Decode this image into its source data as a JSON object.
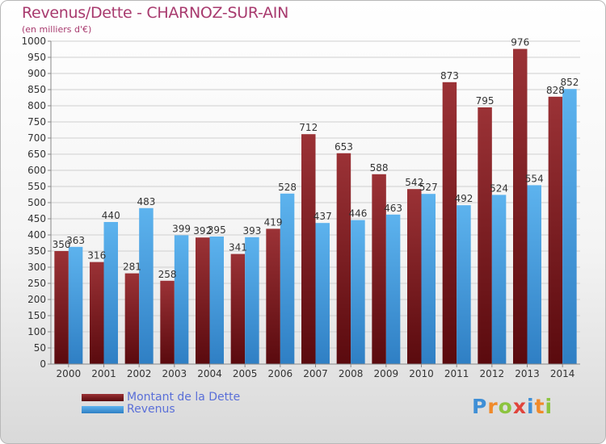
{
  "header": {
    "title": "Revenus/Dette - CHARNOZ-SUR-AIN",
    "subtitle": "(en milliers d'€)"
  },
  "legend": {
    "items": [
      {
        "label": "Montant de la Dette",
        "color": "#7a1f22"
      },
      {
        "label": "Revenus",
        "color": "#4aa3e4"
      }
    ]
  },
  "logo": {
    "text": "Proxiti"
  },
  "chart_data": {
    "type": "bar",
    "title": "Revenus/Dette - CHARNOZ-SUR-AIN",
    "subtitle": "(en milliers d'€)",
    "xlabel": "",
    "ylabel": "",
    "categories": [
      "2000",
      "2001",
      "2002",
      "2003",
      "2004",
      "2005",
      "2006",
      "2007",
      "2008",
      "2009",
      "2010",
      "2011",
      "2012",
      "2013",
      "2014"
    ],
    "series": [
      {
        "name": "Montant de la Dette",
        "color": "#7a1f22",
        "values": [
          350,
          316,
          281,
          258,
          392,
          341,
          419,
          712,
          653,
          588,
          542,
          873,
          795,
          976,
          828
        ]
      },
      {
        "name": "Revenus",
        "color": "#4aa3e4",
        "values": [
          363,
          440,
          483,
          399,
          395,
          393,
          528,
          437,
          446,
          463,
          527,
          492,
          524,
          554,
          852
        ]
      }
    ],
    "ylim": [
      0,
      1000
    ],
    "yticks": [
      0,
      50,
      100,
      150,
      200,
      250,
      300,
      350,
      400,
      450,
      500,
      550,
      600,
      650,
      700,
      750,
      800,
      850,
      900,
      950,
      1000
    ],
    "grid": true,
    "legend_position": "bottom-left"
  }
}
